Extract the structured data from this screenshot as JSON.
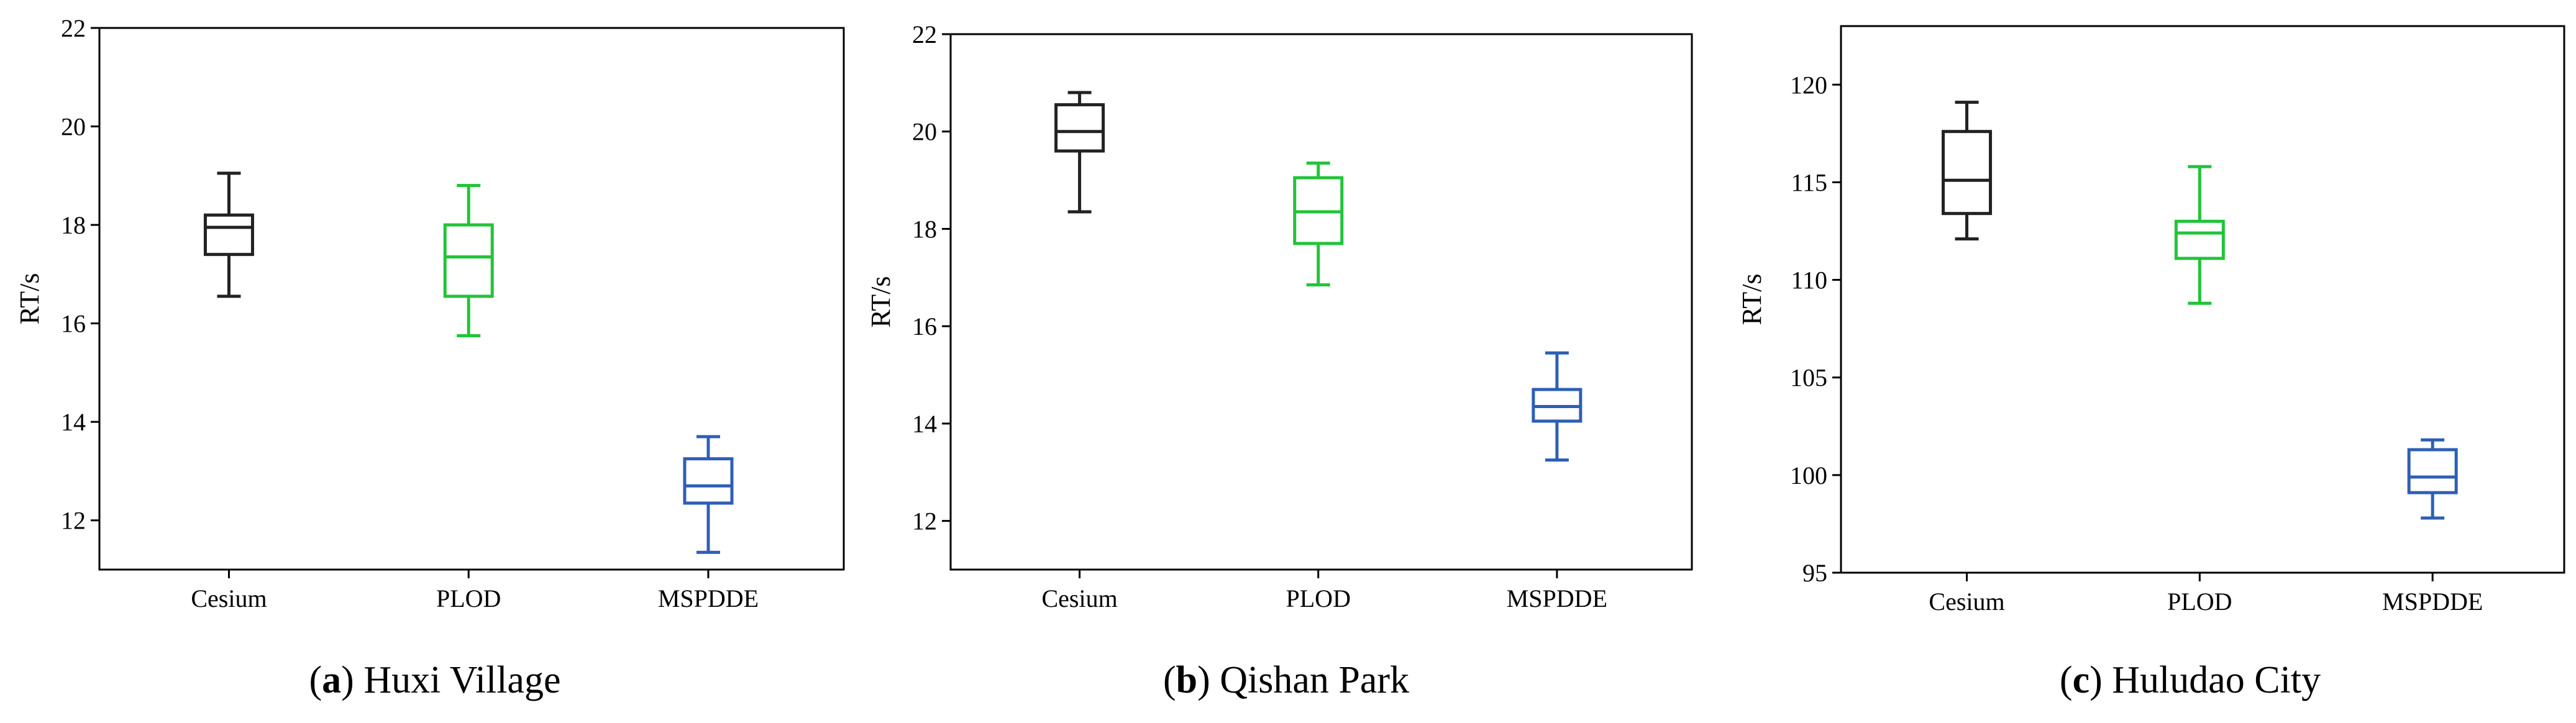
{
  "chart_data": [
    {
      "type": "boxplot",
      "panel": "a",
      "caption_letter": "a",
      "caption_text": "Huxi Village",
      "ylabel": "RT/s",
      "ylim": [
        11,
        22
      ],
      "yticks": [
        12,
        14,
        16,
        18,
        20,
        22
      ],
      "categories": [
        "Cesium",
        "PLOD",
        "MSPDDE"
      ],
      "colors": [
        "#222222",
        "#22c33a",
        "#2e5fb5"
      ],
      "series": [
        {
          "name": "Cesium",
          "min": 16.55,
          "q1": 17.4,
          "median": 17.95,
          "q3": 18.2,
          "max": 19.05
        },
        {
          "name": "PLOD",
          "min": 15.75,
          "q1": 16.55,
          "median": 17.35,
          "q3": 18.0,
          "max": 18.8
        },
        {
          "name": "MSPDDE",
          "min": 11.35,
          "q1": 12.35,
          "median": 12.7,
          "q3": 13.25,
          "max": 13.7
        }
      ]
    },
    {
      "type": "boxplot",
      "panel": "b",
      "caption_letter": "b",
      "caption_text": "Qishan Park",
      "ylabel": "RT/s",
      "ylim": [
        11,
        22
      ],
      "yticks": [
        12,
        14,
        16,
        18,
        20,
        22
      ],
      "categories": [
        "Cesium",
        "PLOD",
        "MSPDDE"
      ],
      "colors": [
        "#222222",
        "#22c33a",
        "#2e5fb5"
      ],
      "series": [
        {
          "name": "Cesium",
          "min": 18.35,
          "q1": 19.6,
          "median": 20.0,
          "q3": 20.55,
          "max": 20.8
        },
        {
          "name": "PLOD",
          "min": 16.85,
          "q1": 17.7,
          "median": 18.35,
          "q3": 19.05,
          "max": 19.35
        },
        {
          "name": "MSPDDE",
          "min": 13.25,
          "q1": 14.05,
          "median": 14.35,
          "q3": 14.7,
          "max": 15.45
        }
      ]
    },
    {
      "type": "boxplot",
      "panel": "c",
      "caption_letter": "c",
      "caption_text": "Huludao City",
      "ylabel": "RT/s",
      "ylim": [
        95,
        123
      ],
      "yticks": [
        95,
        100,
        105,
        110,
        115,
        120
      ],
      "categories": [
        "Cesium",
        "PLOD",
        "MSPDDE"
      ],
      "colors": [
        "#222222",
        "#22c33a",
        "#2e5fb5"
      ],
      "series": [
        {
          "name": "Cesium",
          "min": 112.1,
          "q1": 113.4,
          "median": 115.1,
          "q3": 117.6,
          "max": 119.1
        },
        {
          "name": "PLOD",
          "min": 108.8,
          "q1": 111.1,
          "median": 112.4,
          "q3": 113.0,
          "max": 115.8
        },
        {
          "name": "MSPDDE",
          "min": 97.8,
          "q1": 99.1,
          "median": 99.9,
          "q3": 101.3,
          "max": 101.8
        }
      ]
    }
  ]
}
